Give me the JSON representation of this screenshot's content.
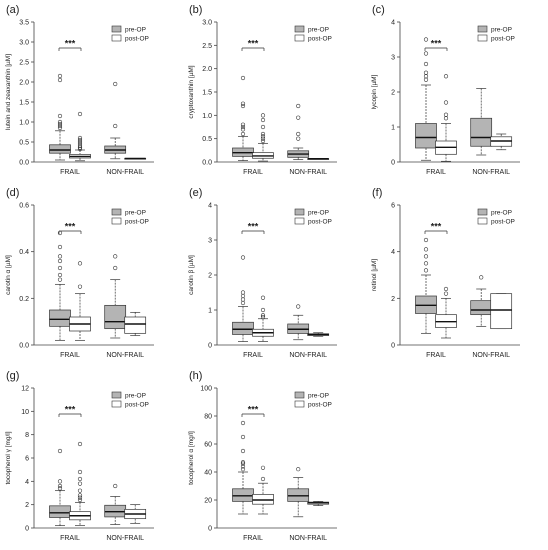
{
  "colors": {
    "pre": "#b4b4b4",
    "post": "#ffffff",
    "line": "#333333"
  },
  "legend": {
    "pre": "pre-OP",
    "post": "post-OP"
  },
  "categories": [
    "FRAIL",
    "NON-FRAIL"
  ],
  "significance": "***",
  "chart_data": [
    {
      "type": "box",
      "panel": "(a)",
      "ylabel": "lutein and zeaxanthin [µM]",
      "ylim": [
        0,
        3.5
      ],
      "yticks": [
        "0.0",
        "0.5",
        "1.0",
        "1.5",
        "2.0",
        "2.5",
        "3.0",
        "3.5"
      ],
      "tickvals": [
        0,
        0.5,
        1,
        1.5,
        2,
        2.5,
        3,
        3.5
      ],
      "categories": [
        "FRAIL",
        "NON-FRAIL"
      ],
      "boxes": [
        {
          "category": "FRAIL",
          "series": "pre-OP",
          "min": 0.05,
          "q1": 0.22,
          "median": 0.3,
          "q3": 0.43,
          "max": 0.78,
          "outliers": [
            0.85,
            0.9,
            0.95,
            1.0,
            1.15,
            2.05,
            2.15
          ]
        },
        {
          "category": "FRAIL",
          "series": "post-OP",
          "min": 0.03,
          "q1": 0.1,
          "median": 0.14,
          "q3": 0.19,
          "max": 0.3,
          "outliers": [
            0.32,
            0.36,
            0.4,
            0.45,
            0.5,
            0.55,
            0.6,
            1.2
          ]
        },
        {
          "category": "NON-FRAIL",
          "series": "pre-OP",
          "min": 0.08,
          "q1": 0.22,
          "median": 0.3,
          "q3": 0.4,
          "max": 0.6,
          "outliers": [
            0.9,
            1.95
          ]
        },
        {
          "category": "NON-FRAIL",
          "series": "post-OP",
          "min": 0.09,
          "q1": 0.09,
          "median": 0.09,
          "q3": 0.09,
          "max": 0.09,
          "outliers": []
        }
      ]
    },
    {
      "type": "box",
      "panel": "(b)",
      "ylabel": "cryptoxanthin [µM]",
      "ylim": [
        0,
        3.0
      ],
      "yticks": [
        "0.0",
        "0.5",
        "1.0",
        "1.5",
        "2.0",
        "2.5",
        "3.0"
      ],
      "tickvals": [
        0,
        0.5,
        1,
        1.5,
        2,
        2.5,
        3
      ],
      "categories": [
        "FRAIL",
        "NON-FRAIL"
      ],
      "boxes": [
        {
          "category": "FRAIL",
          "series": "pre-OP",
          "min": 0.03,
          "q1": 0.12,
          "median": 0.2,
          "q3": 0.3,
          "max": 0.55,
          "outliers": [
            0.6,
            0.7,
            0.75,
            0.8,
            1.2,
            1.25,
            1.8
          ]
        },
        {
          "category": "FRAIL",
          "series": "post-OP",
          "min": 0.02,
          "q1": 0.08,
          "median": 0.13,
          "q3": 0.2,
          "max": 0.4,
          "outliers": [
            0.45,
            0.5,
            0.55,
            0.6,
            0.75,
            0.9,
            1.0
          ]
        },
        {
          "category": "NON-FRAIL",
          "series": "pre-OP",
          "min": 0.05,
          "q1": 0.1,
          "median": 0.17,
          "q3": 0.24,
          "max": 0.3,
          "outliers": [
            0.5,
            0.6,
            0.95,
            1.2
          ]
        },
        {
          "category": "NON-FRAIL",
          "series": "post-OP",
          "min": 0.07,
          "q1": 0.07,
          "median": 0.07,
          "q3": 0.07,
          "max": 0.07,
          "outliers": []
        }
      ]
    },
    {
      "type": "box",
      "panel": "(c)",
      "ylabel": "lycopin [µM]",
      "ylim": [
        0,
        4
      ],
      "yticks": [
        "0",
        "1",
        "2",
        "3",
        "4"
      ],
      "tickvals": [
        0,
        1,
        2,
        3,
        4
      ],
      "categories": [
        "FRAIL",
        "NON-FRAIL"
      ],
      "boxes": [
        {
          "category": "FRAIL",
          "series": "pre-OP",
          "min": 0.05,
          "q1": 0.4,
          "median": 0.7,
          "q3": 1.1,
          "max": 2.2,
          "outliers": [
            2.35,
            2.45,
            2.55,
            2.8,
            3.1,
            3.5
          ]
        },
        {
          "category": "FRAIL",
          "series": "post-OP",
          "min": 0.02,
          "q1": 0.22,
          "median": 0.42,
          "q3": 0.6,
          "max": 1.1,
          "outliers": [
            1.25,
            1.35,
            1.7,
            2.45
          ]
        },
        {
          "category": "NON-FRAIL",
          "series": "pre-OP",
          "min": 0.2,
          "q1": 0.45,
          "median": 0.7,
          "q3": 1.25,
          "max": 2.1,
          "outliers": []
        },
        {
          "category": "NON-FRAIL",
          "series": "post-OP",
          "min": 0.35,
          "q1": 0.45,
          "median": 0.6,
          "q3": 0.72,
          "max": 0.8,
          "outliers": []
        }
      ]
    },
    {
      "type": "box",
      "panel": "(d)",
      "ylabel": "carotin α [µM]",
      "ylim": [
        0,
        0.6
      ],
      "yticks": [
        "0.0",
        "0.2",
        "0.4",
        "0.6"
      ],
      "tickvals": [
        0,
        0.2,
        0.4,
        0.6
      ],
      "categories": [
        "FRAIL",
        "NON-FRAIL"
      ],
      "boxes": [
        {
          "category": "FRAIL",
          "series": "pre-OP",
          "min": 0.02,
          "q1": 0.08,
          "median": 0.11,
          "q3": 0.15,
          "max": 0.26,
          "outliers": [
            0.28,
            0.3,
            0.33,
            0.36,
            0.38,
            0.42,
            0.48
          ]
        },
        {
          "category": "FRAIL",
          "series": "post-OP",
          "min": 0.02,
          "q1": 0.06,
          "median": 0.09,
          "q3": 0.12,
          "max": 0.22,
          "outliers": [
            0.25,
            0.35
          ]
        },
        {
          "category": "NON-FRAIL",
          "series": "pre-OP",
          "min": 0.03,
          "q1": 0.07,
          "median": 0.1,
          "q3": 0.17,
          "max": 0.28,
          "outliers": [
            0.33,
            0.38
          ]
        },
        {
          "category": "NON-FRAIL",
          "series": "post-OP",
          "min": 0.04,
          "q1": 0.05,
          "median": 0.09,
          "q3": 0.12,
          "max": 0.14,
          "outliers": []
        }
      ]
    },
    {
      "type": "box",
      "panel": "(e)",
      "ylabel": "carotin β [µM]",
      "ylim": [
        0,
        4
      ],
      "yticks": [
        "0",
        "1",
        "2",
        "3",
        "4"
      ],
      "tickvals": [
        0,
        1,
        2,
        3,
        4
      ],
      "categories": [
        "FRAIL",
        "NON-FRAIL"
      ],
      "boxes": [
        {
          "category": "FRAIL",
          "series": "pre-OP",
          "min": 0.1,
          "q1": 0.3,
          "median": 0.45,
          "q3": 0.65,
          "max": 1.1,
          "outliers": [
            1.2,
            1.3,
            1.4,
            1.5,
            2.5
          ]
        },
        {
          "category": "FRAIL",
          "series": "post-OP",
          "min": 0.1,
          "q1": 0.25,
          "median": 0.35,
          "q3": 0.45,
          "max": 0.75,
          "outliers": [
            0.8,
            0.85,
            1.0,
            1.35
          ]
        },
        {
          "category": "NON-FRAIL",
          "series": "pre-OP",
          "min": 0.15,
          "q1": 0.33,
          "median": 0.45,
          "q3": 0.6,
          "max": 0.85,
          "outliers": [
            1.1
          ]
        },
        {
          "category": "NON-FRAIL",
          "series": "post-OP",
          "min": 0.25,
          "q1": 0.27,
          "median": 0.3,
          "q3": 0.32,
          "max": 0.35,
          "outliers": []
        }
      ]
    },
    {
      "type": "box",
      "panel": "(f)",
      "ylabel": "retinol [µM]",
      "ylim": [
        0,
        6
      ],
      "yticks": [
        "0",
        "2",
        "4",
        "6"
      ],
      "tickvals": [
        0,
        2,
        4,
        6
      ],
      "categories": [
        "FRAIL",
        "NON-FRAIL"
      ],
      "boxes": [
        {
          "category": "FRAIL",
          "series": "pre-OP",
          "min": 0.5,
          "q1": 1.35,
          "median": 1.7,
          "q3": 2.1,
          "max": 3.0,
          "outliers": [
            3.2,
            3.5,
            3.8,
            4.1,
            4.5
          ]
        },
        {
          "category": "FRAIL",
          "series": "post-OP",
          "min": 0.3,
          "q1": 0.75,
          "median": 1.0,
          "q3": 1.3,
          "max": 2.0,
          "outliers": [
            2.2,
            2.4
          ]
        },
        {
          "category": "NON-FRAIL",
          "series": "pre-OP",
          "min": 0.8,
          "q1": 1.3,
          "median": 1.5,
          "q3": 1.9,
          "max": 2.4,
          "outliers": [
            2.9
          ]
        },
        {
          "category": "NON-FRAIL",
          "series": "post-OP",
          "min": 0.7,
          "q1": 0.7,
          "median": 1.5,
          "q3": 2.2,
          "max": 2.2,
          "outliers": []
        }
      ]
    },
    {
      "type": "box",
      "panel": "(g)",
      "ylabel": "tocopherol γ [mg/l]",
      "ylim": [
        0,
        12
      ],
      "yticks": [
        "0",
        "2",
        "4",
        "6",
        "8",
        "10",
        "12"
      ],
      "tickvals": [
        0,
        2,
        4,
        6,
        8,
        10,
        12
      ],
      "categories": [
        "FRAIL",
        "NON-FRAIL"
      ],
      "boxes": [
        {
          "category": "FRAIL",
          "series": "pre-OP",
          "min": 0.2,
          "q1": 0.9,
          "median": 1.3,
          "q3": 1.9,
          "max": 3.2,
          "outliers": [
            3.4,
            3.6,
            4.0,
            6.6
          ]
        },
        {
          "category": "FRAIL",
          "series": "post-OP",
          "min": 0.2,
          "q1": 0.7,
          "median": 1.05,
          "q3": 1.4,
          "max": 2.2,
          "outliers": [
            2.4,
            2.6,
            2.8,
            3.2,
            3.8,
            4.2,
            4.8,
            7.2
          ]
        },
        {
          "category": "NON-FRAIL",
          "series": "pre-OP",
          "min": 0.3,
          "q1": 0.95,
          "median": 1.4,
          "q3": 1.95,
          "max": 2.7,
          "outliers": [
            3.6
          ]
        },
        {
          "category": "NON-FRAIL",
          "series": "post-OP",
          "min": 0.4,
          "q1": 0.8,
          "median": 1.2,
          "q3": 1.6,
          "max": 2.0,
          "outliers": []
        }
      ]
    },
    {
      "type": "box",
      "panel": "(h)",
      "ylabel": "tocopherol α [mg/l]",
      "ylim": [
        0,
        100
      ],
      "yticks": [
        "0",
        "20",
        "40",
        "60",
        "80",
        "100"
      ],
      "tickvals": [
        0,
        20,
        40,
        60,
        80,
        100
      ],
      "categories": [
        "FRAIL",
        "NON-FRAIL"
      ],
      "boxes": [
        {
          "category": "FRAIL",
          "series": "pre-OP",
          "min": 10,
          "q1": 19,
          "median": 23,
          "q3": 28,
          "max": 40,
          "outliers": [
            42,
            44,
            46,
            47,
            55,
            65,
            75
          ]
        },
        {
          "category": "FRAIL",
          "series": "post-OP",
          "min": 10,
          "q1": 17,
          "median": 20,
          "q3": 24,
          "max": 32,
          "outliers": [
            35,
            43
          ]
        },
        {
          "category": "NON-FRAIL",
          "series": "pre-OP",
          "min": 8,
          "q1": 19,
          "median": 23,
          "q3": 28,
          "max": 36,
          "outliers": [
            42
          ]
        },
        {
          "category": "NON-FRAIL",
          "series": "post-OP",
          "min": 16,
          "q1": 17,
          "median": 18,
          "q3": 18.5,
          "max": 19,
          "outliers": []
        }
      ]
    }
  ]
}
